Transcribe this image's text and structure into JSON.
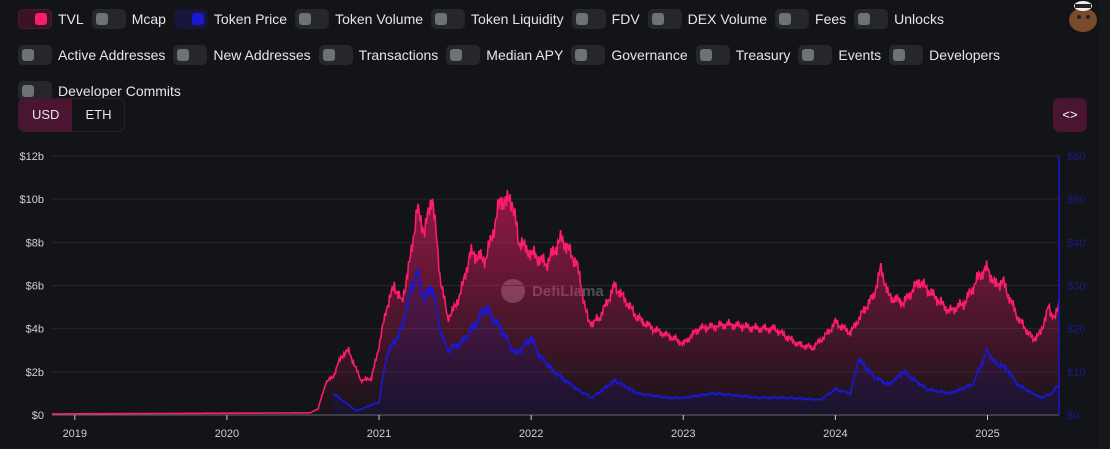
{
  "toggles": [
    {
      "label": "TVL",
      "on": true,
      "kind": "tvl"
    },
    {
      "label": "Mcap",
      "on": false
    },
    {
      "label": "Token Price",
      "on": true,
      "kind": "price"
    },
    {
      "label": "Token Volume",
      "on": false
    },
    {
      "label": "Token Liquidity",
      "on": false
    },
    {
      "label": "FDV",
      "on": false
    },
    {
      "label": "DEX Volume",
      "on": false
    },
    {
      "label": "Fees",
      "on": false
    },
    {
      "label": "Unlocks",
      "on": false
    },
    {
      "label": "Active Addresses",
      "on": false
    },
    {
      "label": "New Addresses",
      "on": false
    },
    {
      "label": "Transactions",
      "on": false
    },
    {
      "label": "Median APY",
      "on": false
    },
    {
      "label": "Governance",
      "on": false
    },
    {
      "label": "Treasury",
      "on": false
    },
    {
      "label": "Events",
      "on": false
    },
    {
      "label": "Developers",
      "on": false
    },
    {
      "label": "Developer Commits",
      "on": false
    }
  ],
  "currency": {
    "usd": "USD",
    "eth": "ETH",
    "selected": "USD"
  },
  "embed_label": "<>",
  "watermark": "DefiLlama",
  "colors": {
    "tvl": "#fd1b6f",
    "price": "#1a18d0"
  },
  "chart_data": {
    "type": "line",
    "x_ticks": [
      "2019",
      "2020",
      "2021",
      "2022",
      "2023",
      "2024",
      "2025"
    ],
    "xlim": [
      2018.85,
      2025.47
    ],
    "left_axis": {
      "ticks": [
        "$0",
        "$2b",
        "$4b",
        "$6b",
        "$8b",
        "$10b",
        "$12b"
      ],
      "ylim": [
        0,
        12
      ]
    },
    "right_axis": {
      "ticks": [
        "$0",
        "$10",
        "$20",
        "$30",
        "$40",
        "$50",
        "$60"
      ],
      "ylim": [
        0,
        60
      ]
    },
    "series": [
      {
        "name": "TVL",
        "unit": "billion USD",
        "points": [
          [
            2018.85,
            0.05
          ],
          [
            2020.55,
            0.1
          ],
          [
            2020.6,
            0.3
          ],
          [
            2020.65,
            1.5
          ],
          [
            2020.7,
            1.8
          ],
          [
            2020.75,
            2.7
          ],
          [
            2020.8,
            3.0
          ],
          [
            2020.88,
            1.6
          ],
          [
            2020.95,
            1.7
          ],
          [
            2021.0,
            3.2
          ],
          [
            2021.05,
            5
          ],
          [
            2021.1,
            6
          ],
          [
            2021.15,
            5.2
          ],
          [
            2021.2,
            7
          ],
          [
            2021.25,
            9.5
          ],
          [
            2021.3,
            8.5
          ],
          [
            2021.35,
            10.2
          ],
          [
            2021.4,
            6.5
          ],
          [
            2021.45,
            4.5
          ],
          [
            2021.5,
            5
          ],
          [
            2021.55,
            6
          ],
          [
            2021.6,
            7.5
          ],
          [
            2021.7,
            7.2
          ],
          [
            2021.75,
            8.5
          ],
          [
            2021.8,
            10
          ],
          [
            2021.88,
            9.8
          ],
          [
            2021.92,
            8
          ],
          [
            2022.0,
            7.5
          ],
          [
            2022.1,
            7
          ],
          [
            2022.2,
            8.2
          ],
          [
            2022.3,
            7
          ],
          [
            2022.38,
            4.2
          ],
          [
            2022.45,
            4.5
          ],
          [
            2022.55,
            6
          ],
          [
            2022.6,
            5.5
          ],
          [
            2022.7,
            4.5
          ],
          [
            2022.8,
            4.0
          ],
          [
            2022.95,
            3.5
          ],
          [
            2023.0,
            3.3
          ],
          [
            2023.1,
            4.0
          ],
          [
            2023.3,
            4.2
          ],
          [
            2023.5,
            4.0
          ],
          [
            2023.6,
            4.0
          ],
          [
            2023.75,
            3.3
          ],
          [
            2023.85,
            3.1
          ],
          [
            2023.95,
            3.8
          ],
          [
            2024.0,
            4.3
          ],
          [
            2024.1,
            3.8
          ],
          [
            2024.2,
            5.0
          ],
          [
            2024.25,
            5.5
          ],
          [
            2024.3,
            6.8
          ],
          [
            2024.35,
            5.5
          ],
          [
            2024.45,
            5.2
          ],
          [
            2024.55,
            6.2
          ],
          [
            2024.65,
            5.5
          ],
          [
            2024.75,
            4.8
          ],
          [
            2024.85,
            5.2
          ],
          [
            2024.95,
            6.5
          ],
          [
            2025.0,
            6.8
          ],
          [
            2025.05,
            6.0
          ],
          [
            2025.1,
            6.2
          ],
          [
            2025.2,
            4.5
          ],
          [
            2025.3,
            3.5
          ],
          [
            2025.35,
            3.8
          ],
          [
            2025.4,
            5.0
          ],
          [
            2025.44,
            4.4
          ],
          [
            2025.47,
            5.3
          ]
        ]
      },
      {
        "name": "Token Price",
        "unit": "USD",
        "points": [
          [
            2020.7,
            5
          ],
          [
            2020.85,
            1
          ],
          [
            2021.0,
            3
          ],
          [
            2021.05,
            14
          ],
          [
            2021.15,
            20
          ],
          [
            2021.2,
            28
          ],
          [
            2021.25,
            33
          ],
          [
            2021.3,
            27
          ],
          [
            2021.35,
            30
          ],
          [
            2021.4,
            20
          ],
          [
            2021.45,
            15
          ],
          [
            2021.55,
            17
          ],
          [
            2021.65,
            22
          ],
          [
            2021.7,
            25
          ],
          [
            2021.8,
            20
          ],
          [
            2021.9,
            14
          ],
          [
            2022.0,
            18
          ],
          [
            2022.05,
            14
          ],
          [
            2022.15,
            10
          ],
          [
            2022.3,
            6
          ],
          [
            2022.4,
            4
          ],
          [
            2022.55,
            8
          ],
          [
            2022.7,
            5
          ],
          [
            2022.9,
            4
          ],
          [
            2023.0,
            4
          ],
          [
            2023.2,
            5
          ],
          [
            2023.5,
            4
          ],
          [
            2023.7,
            4
          ],
          [
            2023.9,
            3.5
          ],
          [
            2024.0,
            6
          ],
          [
            2024.1,
            5
          ],
          [
            2024.15,
            13
          ],
          [
            2024.25,
            9
          ],
          [
            2024.35,
            7
          ],
          [
            2024.45,
            10
          ],
          [
            2024.6,
            6
          ],
          [
            2024.75,
            5
          ],
          [
            2024.9,
            7
          ],
          [
            2025.0,
            15
          ],
          [
            2025.05,
            12
          ],
          [
            2025.12,
            11
          ],
          [
            2025.2,
            7
          ],
          [
            2025.35,
            4
          ],
          [
            2025.42,
            5
          ],
          [
            2025.47,
            7
          ]
        ]
      }
    ]
  }
}
